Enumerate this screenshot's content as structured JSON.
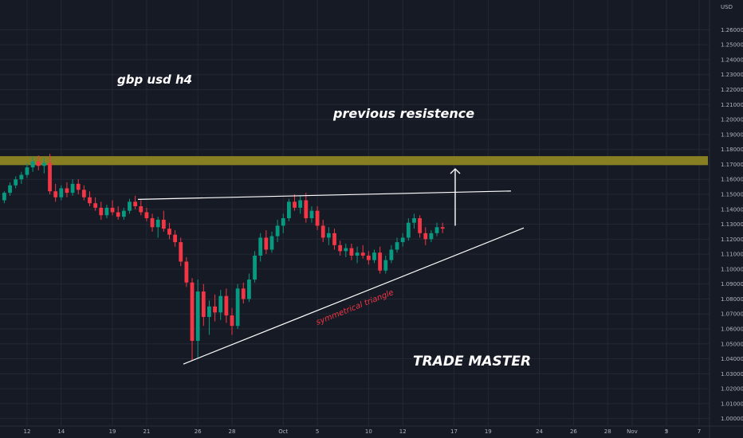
{
  "chart_data": {
    "type": "candlestick",
    "ylabel": "USD",
    "ylim": [
      0.995,
      1.267
    ],
    "y_ticks": [
      "1.26000",
      "1.25000",
      "1.24000",
      "1.23000",
      "1.22000",
      "1.21000",
      "1.20000",
      "1.19000",
      "1.18000",
      "1.17000",
      "1.16000",
      "1.15000",
      "1.14000",
      "1.13000",
      "1.12000",
      "1.11000",
      "1.10000",
      "1.09000",
      "1.08000",
      "1.07000",
      "1.06000",
      "1.05000",
      "1.04000",
      "1.03000",
      "1.02000",
      "1.01000",
      "1.00000"
    ],
    "x_ticks": [
      {
        "label": "12",
        "bar": 4
      },
      {
        "label": "14",
        "bar": 10
      },
      {
        "label": "19",
        "bar": 19
      },
      {
        "label": "21",
        "bar": 25
      },
      {
        "label": "26",
        "bar": 34
      },
      {
        "label": "28",
        "bar": 40
      },
      {
        "label": "Oct",
        "bar": 49
      },
      {
        "label": "5",
        "bar": 55
      },
      {
        "label": "10",
        "bar": 64
      },
      {
        "label": "12",
        "bar": 70
      },
      {
        "label": "17",
        "bar": 79
      },
      {
        "label": "19",
        "bar": 85
      },
      {
        "label": "24",
        "bar": 94
      },
      {
        "label": "26",
        "bar": 100
      },
      {
        "label": "28",
        "bar": 106
      },
      {
        "label": "Nov",
        "bar": 112
      },
      {
        "label": "3",
        "bar": 118
      },
      {
        "label": "5",
        "bar": 124
      },
      {
        "label": "7",
        "bar": 124.6
      }
    ],
    "candles": [
      [
        1.146,
        1.152,
        1.144,
        1.151
      ],
      [
        1.151,
        1.158,
        1.149,
        1.156
      ],
      [
        1.156,
        1.162,
        1.154,
        1.16
      ],
      [
        1.16,
        1.165,
        1.157,
        1.163
      ],
      [
        1.163,
        1.171,
        1.161,
        1.168
      ],
      [
        1.168,
        1.175,
        1.165,
        1.172
      ],
      [
        1.172,
        1.176,
        1.166,
        1.169
      ],
      [
        1.169,
        1.174,
        1.164,
        1.171
      ],
      [
        1.171,
        1.177,
        1.15,
        1.152
      ],
      [
        1.152,
        1.157,
        1.145,
        1.148
      ],
      [
        1.148,
        1.156,
        1.146,
        1.154
      ],
      [
        1.154,
        1.158,
        1.148,
        1.151
      ],
      [
        1.151,
        1.16,
        1.149,
        1.157
      ],
      [
        1.157,
        1.16,
        1.15,
        1.153
      ],
      [
        1.153,
        1.156,
        1.146,
        1.148
      ],
      [
        1.148,
        1.152,
        1.142,
        1.144
      ],
      [
        1.144,
        1.148,
        1.139,
        1.141
      ],
      [
        1.141,
        1.145,
        1.133,
        1.136
      ],
      [
        1.136,
        1.143,
        1.134,
        1.141
      ],
      [
        1.141,
        1.146,
        1.136,
        1.138
      ],
      [
        1.138,
        1.142,
        1.133,
        1.135
      ],
      [
        1.135,
        1.141,
        1.133,
        1.139
      ],
      [
        1.139,
        1.147,
        1.137,
        1.145
      ],
      [
        1.145,
        1.149,
        1.14,
        1.142
      ],
      [
        1.142,
        1.146,
        1.136,
        1.138
      ],
      [
        1.138,
        1.141,
        1.132,
        1.134
      ],
      [
        1.134,
        1.137,
        1.125,
        1.128
      ],
      [
        1.128,
        1.135,
        1.121,
        1.133
      ],
      [
        1.133,
        1.139,
        1.125,
        1.127
      ],
      [
        1.127,
        1.131,
        1.12,
        1.123
      ],
      [
        1.123,
        1.126,
        1.115,
        1.118
      ],
      [
        1.118,
        1.121,
        1.102,
        1.105
      ],
      [
        1.105,
        1.108,
        1.088,
        1.091
      ],
      [
        1.091,
        1.094,
        1.039,
        1.052
      ],
      [
        1.052,
        1.093,
        1.04,
        1.085
      ],
      [
        1.085,
        1.09,
        1.062,
        1.068
      ],
      [
        1.068,
        1.079,
        1.056,
        1.075
      ],
      [
        1.075,
        1.083,
        1.065,
        1.071
      ],
      [
        1.071,
        1.086,
        1.066,
        1.082
      ],
      [
        1.082,
        1.087,
        1.064,
        1.069
      ],
      [
        1.069,
        1.074,
        1.056,
        1.062
      ],
      [
        1.062,
        1.09,
        1.06,
        1.087
      ],
      [
        1.087,
        1.091,
        1.077,
        1.08
      ],
      [
        1.08,
        1.097,
        1.078,
        1.093
      ],
      [
        1.093,
        1.112,
        1.091,
        1.109
      ],
      [
        1.109,
        1.124,
        1.105,
        1.121
      ],
      [
        1.121,
        1.126,
        1.11,
        1.113
      ],
      [
        1.113,
        1.125,
        1.111,
        1.122
      ],
      [
        1.122,
        1.133,
        1.118,
        1.129
      ],
      [
        1.129,
        1.137,
        1.124,
        1.134
      ],
      [
        1.134,
        1.147,
        1.132,
        1.145
      ],
      [
        1.145,
        1.15,
        1.139,
        1.141
      ],
      [
        1.141,
        1.149,
        1.137,
        1.146
      ],
      [
        1.146,
        1.151,
        1.131,
        1.134
      ],
      [
        1.134,
        1.142,
        1.131,
        1.139
      ],
      [
        1.139,
        1.142,
        1.126,
        1.129
      ],
      [
        1.129,
        1.133,
        1.118,
        1.121
      ],
      [
        1.121,
        1.128,
        1.116,
        1.124
      ],
      [
        1.124,
        1.127,
        1.113,
        1.116
      ],
      [
        1.116,
        1.119,
        1.109,
        1.112
      ],
      [
        1.112,
        1.117,
        1.108,
        1.114
      ],
      [
        1.114,
        1.117,
        1.106,
        1.109
      ],
      [
        1.109,
        1.115,
        1.104,
        1.111
      ],
      [
        1.111,
        1.116,
        1.107,
        1.109
      ],
      [
        1.109,
        1.112,
        1.103,
        1.106
      ],
      [
        1.106,
        1.113,
        1.104,
        1.111
      ],
      [
        1.111,
        1.115,
        1.097,
        1.099
      ],
      [
        1.099,
        1.109,
        1.097,
        1.106
      ],
      [
        1.106,
        1.116,
        1.104,
        1.113
      ],
      [
        1.113,
        1.121,
        1.111,
        1.118
      ],
      [
        1.118,
        1.124,
        1.115,
        1.121
      ],
      [
        1.121,
        1.134,
        1.119,
        1.131
      ],
      [
        1.131,
        1.137,
        1.127,
        1.134
      ],
      [
        1.134,
        1.136,
        1.121,
        1.124
      ],
      [
        1.124,
        1.128,
        1.116,
        1.12
      ],
      [
        1.12,
        1.126,
        1.118,
        1.124
      ],
      [
        1.124,
        1.131,
        1.122,
        1.128
      ],
      [
        1.128,
        1.131,
        1.124,
        1.127
      ]
    ],
    "annotations": {
      "title": "gbp usd h4",
      "resistance_label": "previous resistence",
      "pattern_label": "symmetrical triangle",
      "brand": "TRADE MASTER"
    },
    "resistance_zone": [
      1.1695,
      1.1755
    ],
    "upper_line": {
      "from_bar": 26,
      "from": 1.1466,
      "to_bar": 97,
      "to": 1.1522
    },
    "lower_line": {
      "from_bar": 35,
      "from": 1.0365,
      "to_bar": 98,
      "to": 1.1275
    },
    "target_arrow": {
      "bar": 85,
      "from": 1.129,
      "to": 1.167
    },
    "colors": {
      "background": "#161a25",
      "up": "#089981",
      "down": "#f23645",
      "zone": "#8d8522",
      "lines": "#ffffff",
      "grid": "#242834",
      "axis_text": "#b2b5be"
    }
  }
}
